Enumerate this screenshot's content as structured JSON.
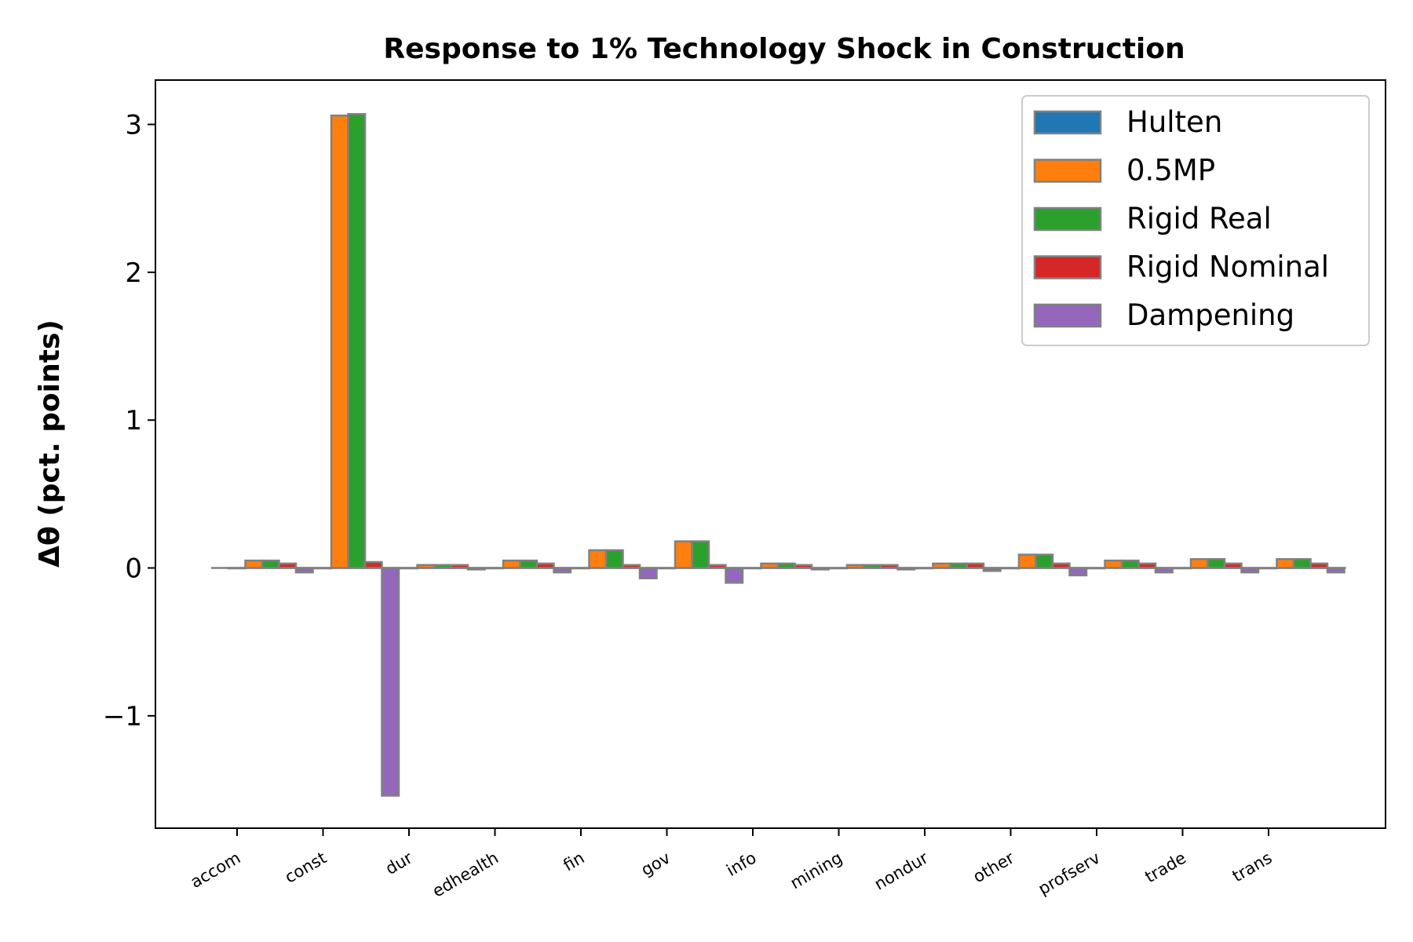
{
  "chart_data": {
    "type": "bar",
    "title": "Response to 1% Technology Shock in Construction",
    "ylabel": "Δθ  (pct. points)",
    "xlabel": "",
    "categories": [
      "accom",
      "const",
      "dur",
      "edhealth",
      "fin",
      "gov",
      "info",
      "mining",
      "nondur",
      "other",
      "profserv",
      "trade",
      "trans"
    ],
    "series": [
      {
        "name": "Hulten",
        "color": "#1f77b4",
        "values": [
          0,
          0,
          0,
          0,
          0,
          0,
          0,
          0,
          0,
          0,
          0,
          0,
          0
        ]
      },
      {
        "name": "0.5MP",
        "color": "#ff7f0e",
        "values": [
          0.05,
          3.06,
          0.02,
          0.05,
          0.12,
          0.18,
          0.03,
          0.02,
          0.03,
          0.09,
          0.05,
          0.06,
          0.06
        ]
      },
      {
        "name": "Rigid Real",
        "color": "#2ca02c",
        "values": [
          0.05,
          3.07,
          0.02,
          0.05,
          0.12,
          0.18,
          0.03,
          0.02,
          0.03,
          0.09,
          0.05,
          0.06,
          0.06
        ]
      },
      {
        "name": "Rigid Nominal",
        "color": "#d62728",
        "values": [
          0.03,
          0.04,
          0.02,
          0.03,
          0.02,
          0.02,
          0.02,
          0.02,
          0.03,
          0.03,
          0.03,
          0.03,
          0.03
        ]
      },
      {
        "name": "Dampening",
        "color": "#9467bd",
        "values": [
          -0.03,
          -1.54,
          -0.01,
          -0.03,
          -0.07,
          -0.1,
          -0.01,
          -0.01,
          -0.02,
          -0.05,
          -0.03,
          -0.03,
          -0.03
        ]
      }
    ],
    "ylim": [
      -1.76,
      3.3
    ],
    "yticks": [
      -1,
      0,
      1,
      2,
      3
    ],
    "ytick_labels": [
      "−1",
      "0",
      "1",
      "2",
      "3"
    ],
    "bar_edge_color": "#808080",
    "grid": false,
    "legend_position": "top-right"
  }
}
